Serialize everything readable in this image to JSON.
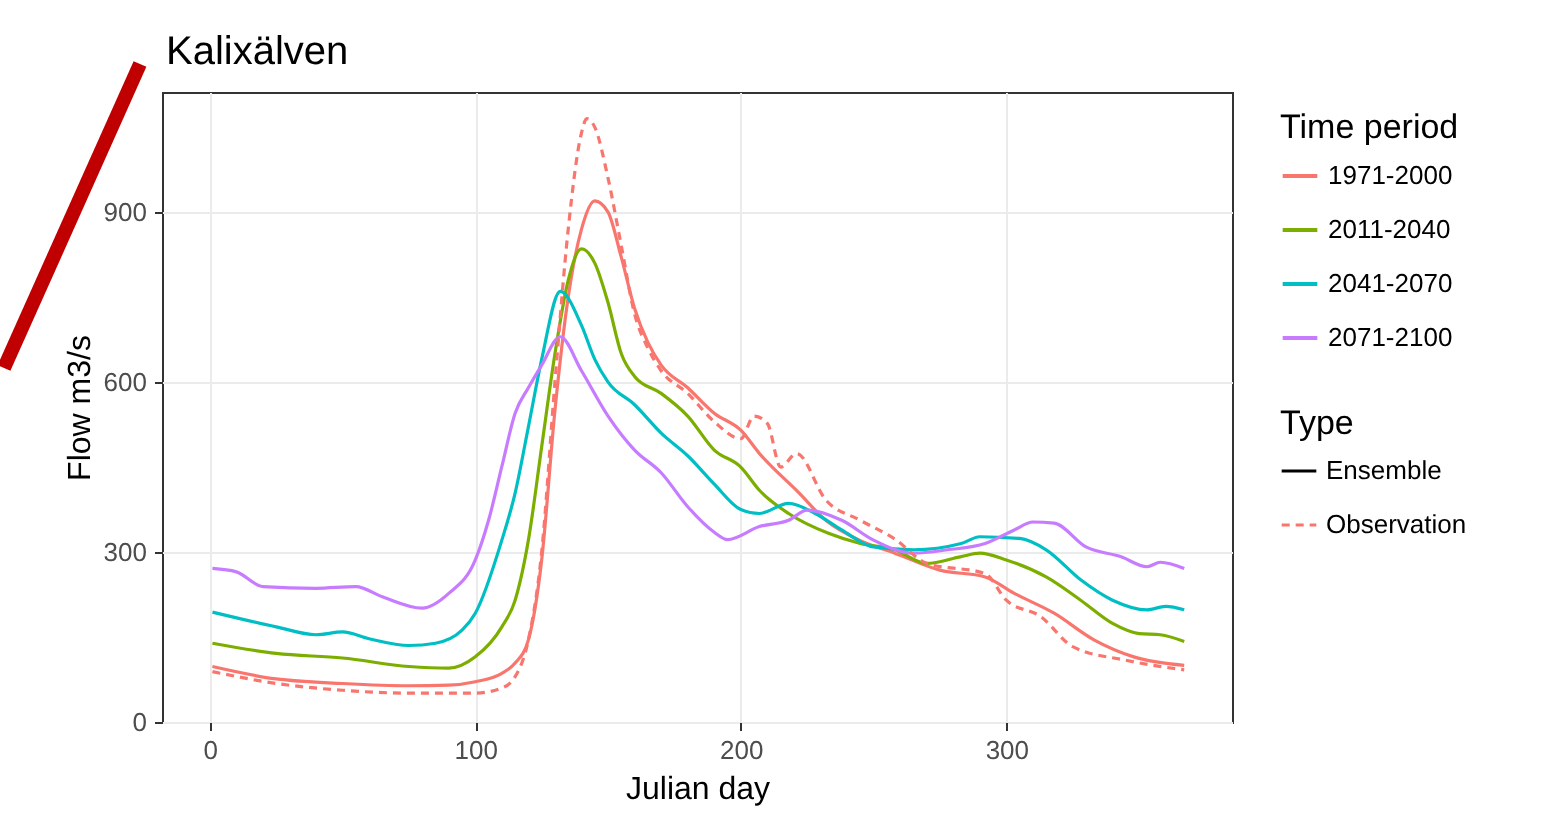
{
  "chart_data": {
    "type": "line",
    "title": "Kalixälven",
    "xlabel": "Julian day",
    "ylabel": "Flow m3/s",
    "legend_title": [
      "Time period",
      "Type"
    ],
    "annotations": [
      "Ensemble"
    ],
    "xlim": [
      -18,
      385
    ],
    "xticks": [
      0,
      100,
      200,
      300
    ],
    "ylim": [
      0,
      1112
    ],
    "yticks": [
      0,
      300,
      600,
      900
    ],
    "grid": true,
    "legend": "right",
    "series": [
      {
        "name": "1971-2000",
        "color": "#f8766d",
        "line_style": "solid",
        "x": [
          1,
          25,
          50,
          75,
          90,
          100,
          110,
          115,
          120,
          125,
          130,
          135,
          140,
          145,
          150,
          155,
          160,
          165,
          170,
          180,
          190,
          200,
          207,
          222,
          232,
          245,
          258,
          275,
          292,
          303,
          318,
          333,
          348,
          367
        ],
        "values": [
          98,
          76,
          68,
          64,
          65,
          71,
          86,
          104,
          145,
          286,
          550,
          750,
          870,
          920,
          900,
          820,
          730,
          670,
          630,
          590,
          545,
          515,
          474,
          404,
          356,
          320,
          298,
          268,
          256,
          227,
          192,
          145,
          115,
          100
        ]
      },
      {
        "name": "2011-2040",
        "color": "#7cae00",
        "line_style": "solid",
        "x": [
          1,
          25,
          50,
          75,
          90,
          100,
          110,
          115,
          120,
          125,
          130,
          135,
          140,
          145,
          150,
          155,
          160,
          170,
          180,
          190,
          200,
          207,
          218,
          233,
          245,
          258,
          270,
          283,
          290,
          300,
          315,
          328,
          340,
          350,
          358,
          367
        ],
        "values": [
          139,
          121,
          113,
          98,
          95,
          115,
          168,
          215,
          321,
          486,
          650,
          780,
          835,
          810,
          740,
          650,
          610,
          580,
          540,
          480,
          450,
          409,
          368,
          333,
          315,
          304,
          280,
          292,
          298,
          286,
          256,
          215,
          174,
          156,
          154,
          142
        ]
      },
      {
        "name": "2041-2070",
        "color": "#00bfc4",
        "line_style": "solid",
        "x": [
          1,
          25,
          40,
          50,
          60,
          75,
          85,
          95,
          100,
          110,
          115,
          120,
          125,
          132,
          140,
          145,
          150,
          160,
          170,
          180,
          190,
          200,
          207,
          218,
          228,
          238,
          250,
          265,
          283,
          290,
          305,
          315,
          328,
          340,
          353,
          360,
          367
        ],
        "values": [
          194,
          168,
          154,
          159,
          147,
          135,
          139,
          162,
          192,
          321,
          404,
          521,
          640,
          760,
          700,
          640,
          600,
          560,
          510,
          470,
          420,
          375,
          368,
          386,
          368,
          339,
          309,
          304,
          315,
          327,
          324,
          304,
          251,
          215,
          198,
          204,
          198
        ]
      },
      {
        "name": "2071-2100",
        "color": "#c77cff",
        "line_style": "solid",
        "x": [
          1,
          10,
          20,
          40,
          55,
          65,
          80,
          90,
          100,
          105,
          110,
          115,
          120,
          125,
          132,
          140,
          150,
          160,
          170,
          180,
          190,
          195,
          207,
          218,
          225,
          238,
          250,
          265,
          278,
          292,
          303,
          310,
          318,
          330,
          343,
          353,
          358,
          367
        ],
        "values": [
          271,
          265,
          239,
          236,
          239,
          221,
          201,
          227,
          286,
          356,
          451,
          545,
          590,
          630,
          680,
          620,
          540,
          480,
          440,
          380,
          335,
          322,
          345,
          356,
          374,
          356,
          321,
          298,
          304,
          315,
          339,
          353,
          351,
          309,
          292,
          274,
          282,
          271
        ]
      },
      {
        "name": "Observation",
        "color": "#f8766d",
        "line_style": "dashed",
        "x": [
          1,
          25,
          50,
          75,
          100,
          110,
          115,
          120,
          125,
          130,
          135,
          140,
          142,
          145,
          150,
          155,
          160,
          165,
          170,
          180,
          190,
          200,
          205,
          210,
          215,
          221,
          232,
          245,
          258,
          270,
          292,
          300,
          313,
          325,
          345,
          367
        ],
        "values": [
          89,
          68,
          56,
          51,
          51,
          60,
          80,
          145,
          300,
          600,
          870,
          1040,
          1065,
          1050,
          960,
          840,
          720,
          660,
          620,
          580,
          530,
          500,
          540,
          527,
          450,
          474,
          392,
          356,
          323,
          280,
          262,
          215,
          186,
          133,
          109,
          92
        ]
      }
    ]
  }
}
